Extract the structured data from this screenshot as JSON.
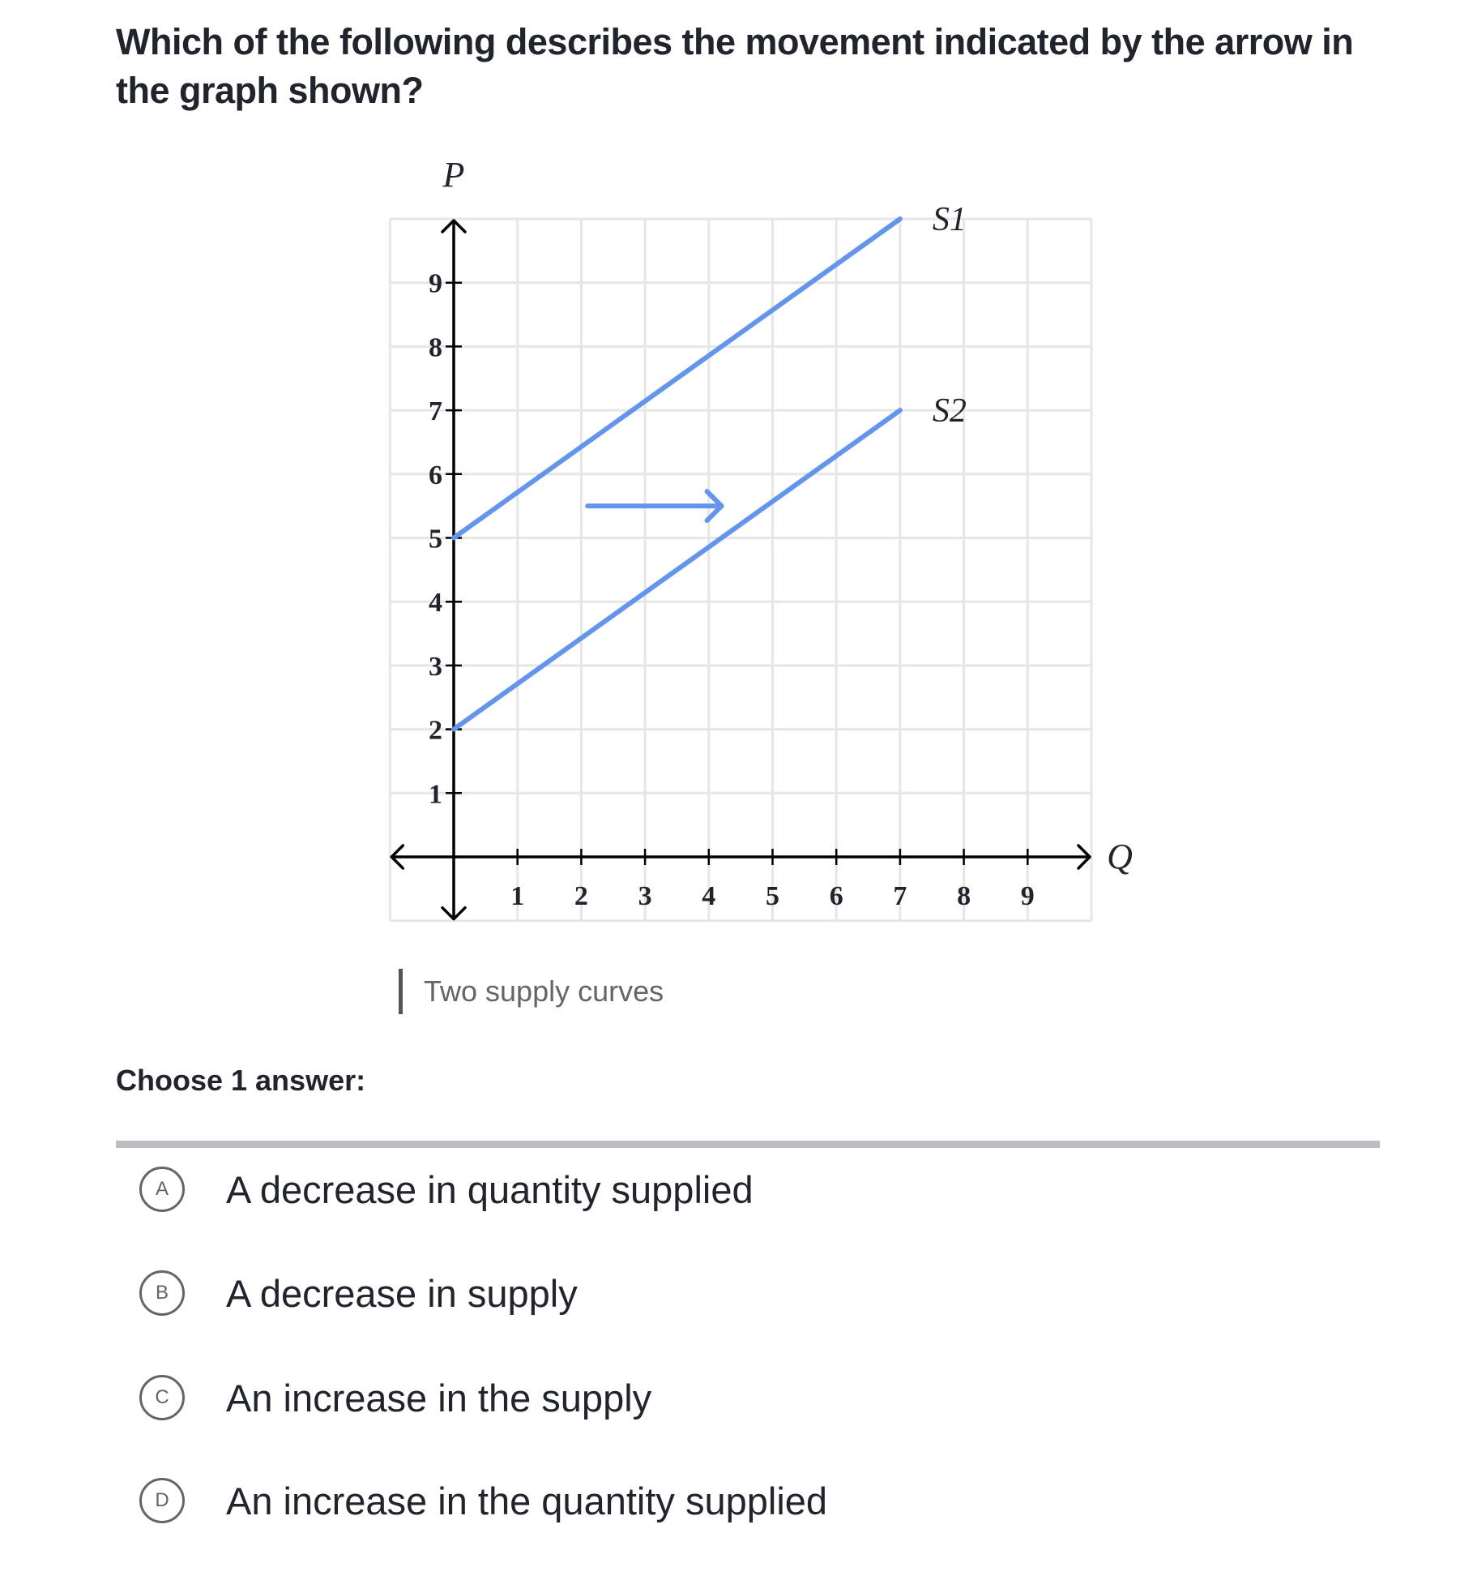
{
  "question": "Which of the following describes the movement indicated by the arrow in the graph shown?",
  "chart_data": {
    "type": "line",
    "xlabel": "Q",
    "ylabel": "P",
    "xlim": [
      -1,
      10
    ],
    "ylim": [
      -1,
      10
    ],
    "grid": true,
    "x_ticks": [
      "1",
      "2",
      "3",
      "4",
      "5",
      "6",
      "7",
      "8",
      "9"
    ],
    "y_ticks": [
      "1",
      "2",
      "3",
      "4",
      "5",
      "6",
      "7",
      "8",
      "9"
    ],
    "series": [
      {
        "name": "S1",
        "x": [
          0,
          7
        ],
        "y": [
          5,
          10
        ],
        "color": "#6495ed"
      },
      {
        "name": "S2",
        "x": [
          0,
          7
        ],
        "y": [
          2,
          7
        ],
        "color": "#6495ed"
      }
    ],
    "annotations": [
      {
        "type": "arrow",
        "from": [
          2.1,
          5.5
        ],
        "to": [
          4.2,
          5.5
        ],
        "color": "#6495ed"
      }
    ]
  },
  "caption": "Two supply curves",
  "choose_label": "Choose 1 answer:",
  "options": [
    {
      "letter": "A",
      "text": "A decrease in quantity supplied"
    },
    {
      "letter": "B",
      "text": "A decrease in supply"
    },
    {
      "letter": "C",
      "text": "An increase in the supply"
    },
    {
      "letter": "D",
      "text": "An increase in the quantity supplied"
    }
  ]
}
